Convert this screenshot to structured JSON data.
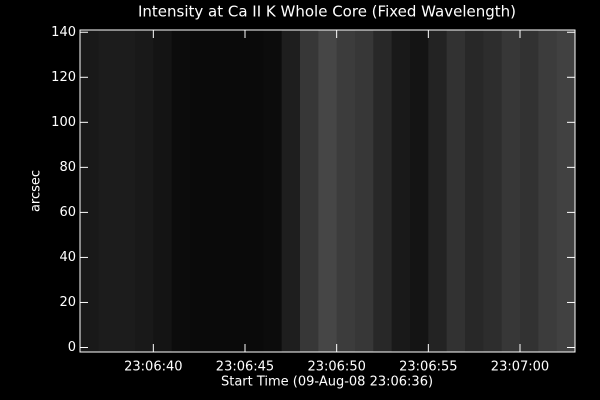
{
  "chart_data": {
    "type": "image",
    "title": "Intensity at Ca II K Whole Core (Fixed Wavelength)",
    "x_label": "Start Time (09-Aug-08 23:06:36)",
    "y_label": "arcsec",
    "x_bins": [
      0,
      1,
      2,
      3,
      4,
      5,
      6,
      7,
      8,
      9,
      10,
      11,
      12,
      13,
      14,
      15,
      16,
      17,
      18,
      19,
      20,
      21,
      22,
      23,
      24,
      25,
      26,
      27
    ],
    "intensity": [
      25,
      28,
      28,
      25,
      20,
      12,
      10,
      10,
      10,
      10,
      12,
      30,
      55,
      70,
      60,
      55,
      40,
      25,
      20,
      35,
      50,
      40,
      45,
      55,
      50,
      60,
      65
    ],
    "xlim": [
      0,
      27
    ],
    "ylim": [
      -2,
      141
    ],
    "xticks": [
      {
        "value": 4,
        "label": "23:06:40"
      },
      {
        "value": 9,
        "label": "23:06:45"
      },
      {
        "value": 14,
        "label": "23:06:50"
      },
      {
        "value": 19,
        "label": "23:06:55"
      },
      {
        "value": 24,
        "label": "23:07:00"
      }
    ],
    "yticks": [
      0,
      20,
      40,
      60,
      80,
      100,
      120,
      140
    ]
  }
}
